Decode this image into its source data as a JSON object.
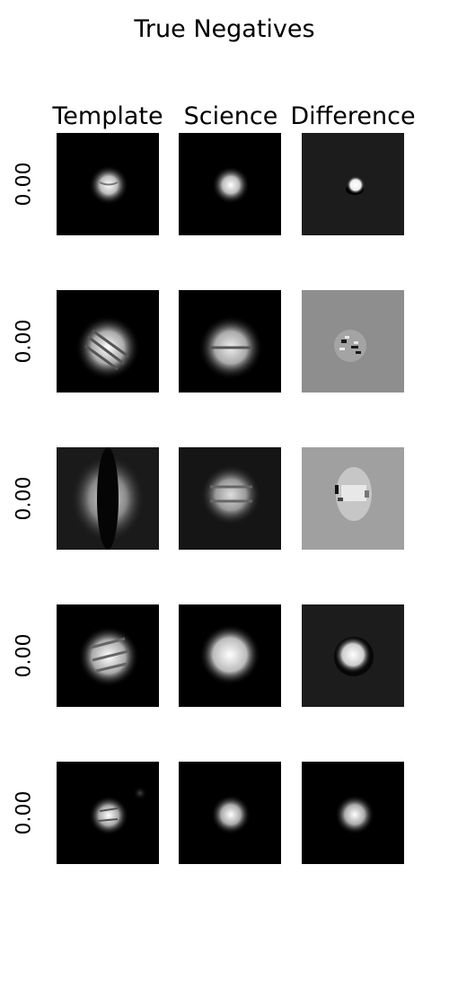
{
  "figure": {
    "title": "True Negatives",
    "columns": [
      "Template",
      "Science",
      "Difference"
    ],
    "rows": [
      {
        "score": "0.00"
      },
      {
        "score": "0.00"
      },
      {
        "score": "0.00"
      },
      {
        "score": "0.00"
      },
      {
        "score": "0.00"
      }
    ]
  },
  "colors": {
    "colormap": "grayscale",
    "background": "#ffffff"
  }
}
